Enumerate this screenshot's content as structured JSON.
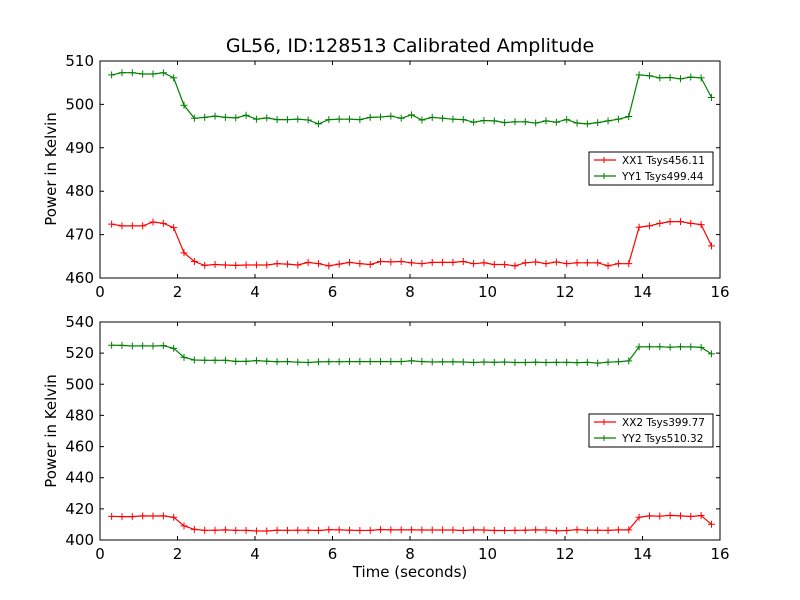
{
  "figure": {
    "title": "GL56, ID:128513 Calibrated Amplitude",
    "xlabel": "Time (seconds)",
    "ylabel": "Power in Kelvin"
  },
  "chart_data": [
    {
      "type": "line",
      "xlim": [
        0,
        16
      ],
      "ylim": [
        460,
        510
      ],
      "xticks": [
        "0",
        "2",
        "4",
        "6",
        "8",
        "10",
        "12",
        "14",
        "16"
      ],
      "yticks": [
        "460",
        "470",
        "480",
        "490",
        "500",
        "510"
      ],
      "legend_position": "right",
      "grid": false,
      "series": [
        {
          "name": "XX1 Tsys456.11",
          "color": "#ff0000",
          "values": [
            472.4,
            472.0,
            472.0,
            472.0,
            472.9,
            472.6,
            471.6,
            465.8,
            463.8,
            462.9,
            463.1,
            463.0,
            462.9,
            463.0,
            463.0,
            463.0,
            463.3,
            463.2,
            463.0,
            463.6,
            463.3,
            462.8,
            463.2,
            463.6,
            463.3,
            463.1,
            463.8,
            463.7,
            463.8,
            463.5,
            463.3,
            463.6,
            463.6,
            463.6,
            463.8,
            463.3,
            463.5,
            463.1,
            463.1,
            462.8,
            463.5,
            463.7,
            463.3,
            463.7,
            463.3,
            463.5,
            463.5,
            463.5,
            462.8,
            463.3,
            463.3,
            471.7,
            472.0,
            472.6,
            473.0,
            473.0,
            472.6,
            472.3,
            467.4
          ]
        },
        {
          "name": "YY1 Tsys499.44",
          "color": "#008000",
          "values": [
            506.8,
            507.3,
            507.3,
            507.0,
            507.0,
            507.3,
            506.1,
            499.8,
            496.8,
            497.0,
            497.3,
            497.0,
            496.9,
            497.5,
            496.6,
            496.9,
            496.5,
            496.5,
            496.6,
            496.4,
            495.5,
            496.5,
            496.6,
            496.6,
            496.5,
            497.0,
            497.1,
            497.3,
            496.8,
            497.6,
            496.4,
            497.0,
            496.8,
            496.6,
            496.5,
            495.9,
            496.3,
            496.2,
            495.8,
            496.0,
            496.0,
            495.7,
            496.2,
            495.9,
            496.5,
            495.7,
            495.5,
            495.8,
            496.2,
            496.6,
            497.2,
            506.8,
            506.6,
            506.1,
            506.2,
            505.9,
            506.3,
            506.1,
            501.6
          ]
        }
      ]
    },
    {
      "type": "line",
      "xlim": [
        0,
        16
      ],
      "ylim": [
        400,
        540
      ],
      "xticks": [
        "0",
        "2",
        "4",
        "6",
        "8",
        "10",
        "12",
        "14",
        "16"
      ],
      "yticks": [
        "400",
        "420",
        "440",
        "460",
        "480",
        "500",
        "520",
        "540"
      ],
      "legend_position": "right",
      "grid": false,
      "series": [
        {
          "name": "XX2 Tsys399.77",
          "color": "#ff0000",
          "values": [
            415.2,
            415.0,
            415.0,
            415.5,
            415.4,
            415.5,
            414.6,
            409.1,
            406.8,
            406.2,
            406.3,
            406.5,
            406.2,
            406.2,
            405.8,
            405.8,
            406.3,
            406.2,
            406.3,
            406.3,
            406.1,
            406.6,
            406.5,
            406.3,
            406.1,
            406.2,
            406.7,
            406.5,
            406.5,
            406.5,
            406.4,
            406.4,
            406.4,
            406.4,
            406.1,
            406.5,
            406.4,
            406.1,
            406.1,
            406.2,
            406.3,
            406.5,
            406.4,
            405.9,
            406.1,
            406.6,
            406.3,
            406.3,
            406.2,
            406.5,
            406.5,
            414.6,
            415.5,
            415.3,
            415.8,
            415.5,
            415.1,
            415.7,
            410.1
          ]
        },
        {
          "name": "YY2 Tsys510.32",
          "color": "#008000",
          "values": [
            525.1,
            525.0,
            524.6,
            524.7,
            524.6,
            524.8,
            523.1,
            517.3,
            515.6,
            515.4,
            515.4,
            515.4,
            514.7,
            514.7,
            515.2,
            514.8,
            514.5,
            514.6,
            514.2,
            514.0,
            514.4,
            514.5,
            514.5,
            514.6,
            514.6,
            514.6,
            514.6,
            514.6,
            514.6,
            515.1,
            514.6,
            514.3,
            514.4,
            514.4,
            514.3,
            514.0,
            514.3,
            514.1,
            514.3,
            514.0,
            514.0,
            514.2,
            514.0,
            514.1,
            514.1,
            513.9,
            514.1,
            513.6,
            514.2,
            514.5,
            515.0,
            524.0,
            524.1,
            524.1,
            523.8,
            524.1,
            524.0,
            523.7,
            519.5
          ]
        }
      ]
    }
  ]
}
